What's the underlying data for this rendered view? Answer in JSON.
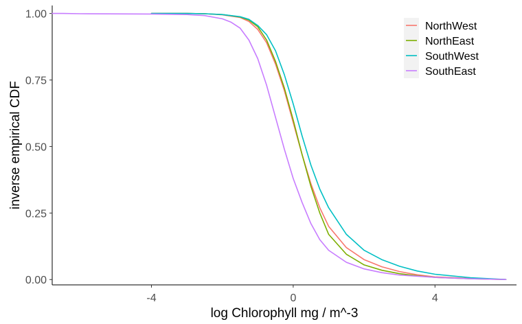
{
  "chart_data": {
    "type": "line",
    "title": "",
    "xlabel": "log Chlorophyll mg / m^-3",
    "ylabel": "inverse empirical CDF",
    "xlim": [
      -6.8,
      6.3
    ],
    "ylim": [
      -0.02,
      1.03
    ],
    "x_ticks": [
      -4,
      0,
      4
    ],
    "x_tick_labels": [
      "-4",
      "0",
      "4"
    ],
    "y_ticks": [
      0,
      0.25,
      0.5,
      0.75,
      1
    ],
    "y_tick_labels": [
      "0.00",
      "0.25",
      "0.50",
      "0.75",
      "1.00"
    ],
    "grid": false,
    "legend_position": "top-right",
    "series": [
      {
        "name": "NorthWest",
        "color": "#F8766D",
        "points": [
          [
            -4,
            1.0
          ],
          [
            -3,
            1.0
          ],
          [
            -2.5,
            0.999
          ],
          [
            -2,
            0.995
          ],
          [
            -1.5,
            0.985
          ],
          [
            -1.25,
            0.97
          ],
          [
            -1,
            0.94
          ],
          [
            -0.75,
            0.89
          ],
          [
            -0.5,
            0.81
          ],
          [
            -0.25,
            0.71
          ],
          [
            0,
            0.59
          ],
          [
            0.25,
            0.47
          ],
          [
            0.5,
            0.36
          ],
          [
            0.75,
            0.27
          ],
          [
            1,
            0.2
          ],
          [
            1.5,
            0.12
          ],
          [
            2,
            0.075
          ],
          [
            2.5,
            0.048
          ],
          [
            3,
            0.03
          ],
          [
            3.5,
            0.018
          ],
          [
            4,
            0.01
          ],
          [
            5,
            0.004
          ],
          [
            6,
            0.0
          ]
        ]
      },
      {
        "name": "NorthEast",
        "color": "#7CAE00",
        "points": [
          [
            -4,
            1.0
          ],
          [
            -3,
            1.0
          ],
          [
            -2.5,
            0.999
          ],
          [
            -2,
            0.996
          ],
          [
            -1.5,
            0.987
          ],
          [
            -1.25,
            0.975
          ],
          [
            -1,
            0.95
          ],
          [
            -0.75,
            0.9
          ],
          [
            -0.5,
            0.82
          ],
          [
            -0.25,
            0.72
          ],
          [
            0,
            0.6
          ],
          [
            0.25,
            0.47
          ],
          [
            0.5,
            0.35
          ],
          [
            0.75,
            0.25
          ],
          [
            1,
            0.17
          ],
          [
            1.5,
            0.095
          ],
          [
            2,
            0.055
          ],
          [
            2.5,
            0.035
          ],
          [
            3,
            0.022
          ],
          [
            3.5,
            0.014
          ],
          [
            4,
            0.008
          ],
          [
            5,
            0.003
          ],
          [
            6,
            0.0
          ]
        ]
      },
      {
        "name": "SouthWest",
        "color": "#00BFC4",
        "points": [
          [
            -4,
            1.0
          ],
          [
            -3,
            1.0
          ],
          [
            -2.5,
            0.999
          ],
          [
            -2,
            0.996
          ],
          [
            -1.5,
            0.988
          ],
          [
            -1.25,
            0.978
          ],
          [
            -1,
            0.955
          ],
          [
            -0.75,
            0.92
          ],
          [
            -0.5,
            0.86
          ],
          [
            -0.25,
            0.77
          ],
          [
            0,
            0.66
          ],
          [
            0.25,
            0.54
          ],
          [
            0.5,
            0.43
          ],
          [
            0.75,
            0.34
          ],
          [
            1,
            0.27
          ],
          [
            1.5,
            0.17
          ],
          [
            2,
            0.11
          ],
          [
            2.5,
            0.075
          ],
          [
            3,
            0.05
          ],
          [
            3.5,
            0.032
          ],
          [
            4,
            0.02
          ],
          [
            5,
            0.007
          ],
          [
            6,
            0.0
          ]
        ]
      },
      {
        "name": "SouthEast",
        "color": "#C77CFF",
        "points": [
          [
            -6.8,
            1.0
          ],
          [
            -6.5,
            1.0
          ],
          [
            -6,
            0.999
          ],
          [
            -4,
            0.998
          ],
          [
            -3,
            0.996
          ],
          [
            -2.5,
            0.992
          ],
          [
            -2,
            0.98
          ],
          [
            -1.75,
            0.967
          ],
          [
            -1.5,
            0.945
          ],
          [
            -1.25,
            0.9
          ],
          [
            -1,
            0.83
          ],
          [
            -0.75,
            0.73
          ],
          [
            -0.5,
            0.61
          ],
          [
            -0.25,
            0.49
          ],
          [
            0,
            0.38
          ],
          [
            0.25,
            0.29
          ],
          [
            0.5,
            0.21
          ],
          [
            0.75,
            0.15
          ],
          [
            1,
            0.11
          ],
          [
            1.5,
            0.065
          ],
          [
            2,
            0.04
          ],
          [
            2.5,
            0.026
          ],
          [
            3,
            0.017
          ],
          [
            4,
            0.008
          ],
          [
            5,
            0.003
          ],
          [
            6,
            0.0
          ]
        ]
      }
    ]
  }
}
